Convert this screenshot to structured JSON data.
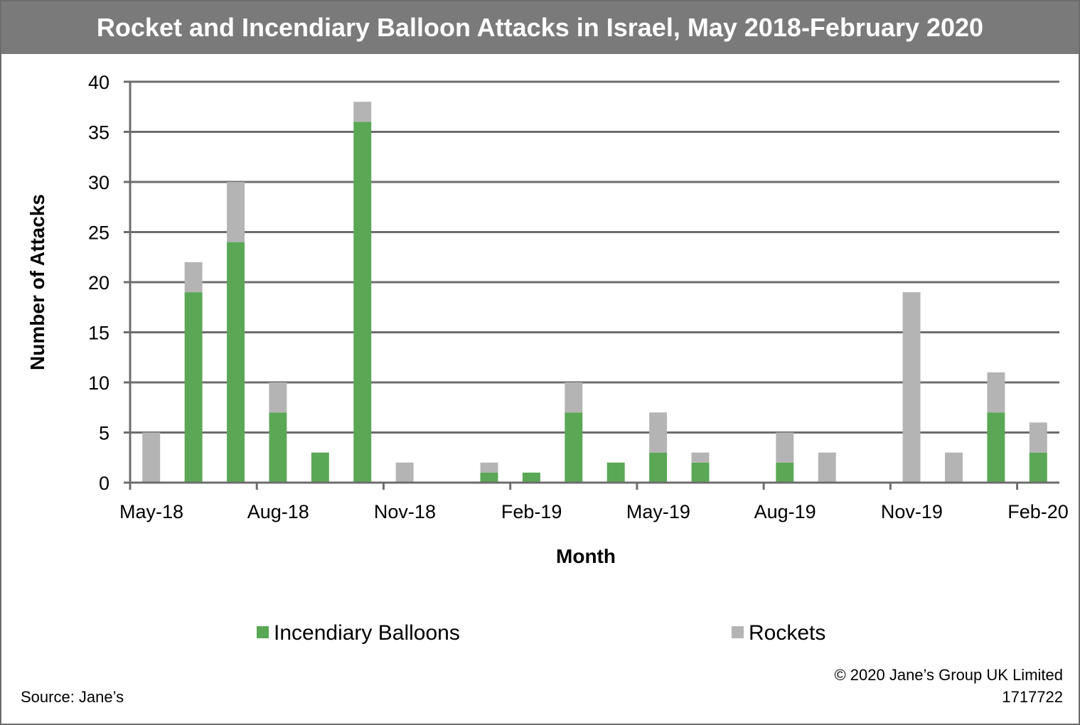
{
  "title": "Rocket and Incendiary Balloon Attacks in Israel, May 2018-February 2020",
  "colors": {
    "title_bar": "#7a7a7a",
    "balloons": "#5aa855",
    "rockets": "#b4b4b4",
    "grid": "#6d6d6d"
  },
  "footer": {
    "source": "Source:  Jane’s",
    "copyright": "© 2020  Jane’s  Group UK Limited",
    "id": "1717722"
  },
  "chart_data": {
    "type": "bar",
    "stacked": true,
    "xlabel": "Month",
    "ylabel": "Number of Attacks",
    "ylim": [
      0,
      40
    ],
    "yticks": [
      0,
      5,
      10,
      15,
      20,
      25,
      30,
      35,
      40
    ],
    "grid": true,
    "legend_position": "bottom",
    "categories": [
      "May-18",
      "Jun-18",
      "Jul-18",
      "Aug-18",
      "Sep-18",
      "Oct-18",
      "Nov-18",
      "Dec-18",
      "Jan-19",
      "Feb-19",
      "Mar-19",
      "Apr-19",
      "May-19",
      "Jun-19",
      "Jul-19",
      "Aug-19",
      "Sep-19",
      "Oct-19",
      "Nov-19",
      "Dec-19",
      "Jan-20",
      "Feb-20"
    ],
    "tick_labels": [
      {
        "label": "May-18",
        "index": 0
      },
      {
        "label": "Aug-18",
        "index": 3
      },
      {
        "label": "Nov-18",
        "index": 6
      },
      {
        "label": "Feb-19",
        "index": 9
      },
      {
        "label": "May-19",
        "index": 12
      },
      {
        "label": "Aug-19",
        "index": 15
      },
      {
        "label": "Nov-19",
        "index": 18
      },
      {
        "label": "Feb-20",
        "index": 21
      }
    ],
    "series": [
      {
        "name": "Incendiary Balloons",
        "values": [
          0,
          19,
          24,
          7,
          3,
          36,
          0,
          0,
          1,
          1,
          7,
          2,
          3,
          2,
          0,
          2,
          0,
          0,
          0,
          0,
          7,
          3
        ]
      },
      {
        "name": "Rockets",
        "values": [
          5,
          3,
          6,
          3,
          0,
          2,
          2,
          0,
          1,
          0,
          3,
          0,
          4,
          1,
          0,
          3,
          3,
          0,
          19,
          3,
          4,
          3
        ]
      }
    ]
  }
}
